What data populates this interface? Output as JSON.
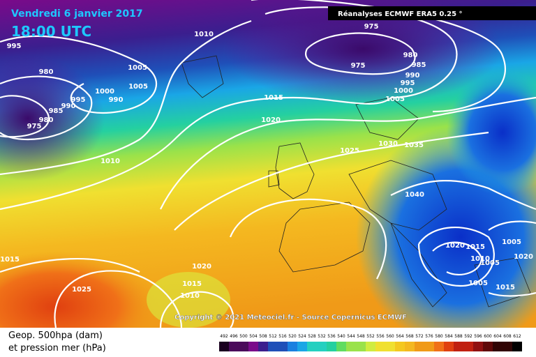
{
  "header": {
    "title": "Vendredi 6 janvier 2017",
    "time": "18:00 UTC",
    "source": "Réanalyses ECMWF ERA5 0.25 °"
  },
  "isobars": [
    "995",
    "980",
    "1000",
    "1005",
    "1005",
    "995",
    "990",
    "990",
    "985",
    "980",
    "975",
    "1010",
    "975",
    "975",
    "980",
    "985",
    "990",
    "995",
    "1000",
    "1005",
    "1015",
    "1020",
    "1010",
    "1025",
    "1030",
    "1035",
    "1040",
    "1020",
    "1015",
    "1005",
    "1010",
    "1005",
    "1005",
    "1015",
    "1020",
    "1015",
    "1025",
    "1020",
    "1015",
    "1010"
  ],
  "copyright": "Copyright © 2021 Meteociel.fr - Source Copernicus ECMWF",
  "legend": {
    "line1": "Geop. 500hpa (dam)",
    "line2": "et pression mer (hPa)",
    "scale": [
      492,
      496,
      500,
      504,
      508,
      512,
      516,
      520,
      524,
      528,
      532,
      536,
      540,
      544,
      548,
      552,
      556,
      560,
      564,
      568,
      572,
      576,
      580,
      584,
      588,
      592,
      596,
      600,
      604,
      608,
      612
    ]
  }
}
